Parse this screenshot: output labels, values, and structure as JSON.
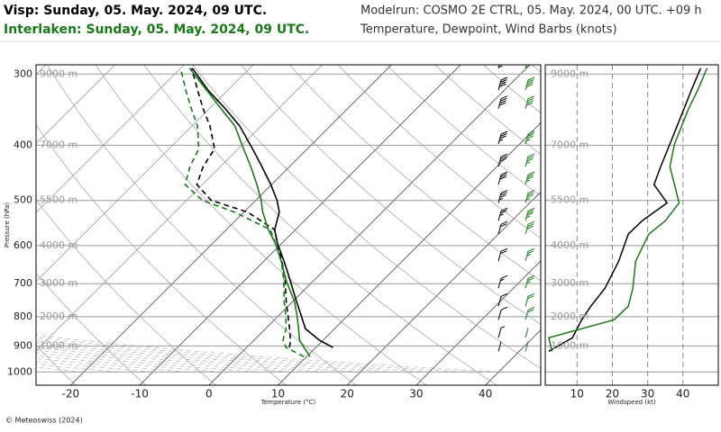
{
  "header": {
    "title_visp": "Visp: Sunday, 05. May. 2024, 09 UTC.",
    "title_interlaken": "Interlaken: Sunday, 05. May. 2024, 09 UTC.",
    "modelrun": "Modelrun: COSMO 2E CTRL, 05. May. 2024, 00 UTC. +09 h",
    "subtitle": "Temperature, Dewpoint, Wind Barbs (knots)",
    "title_visp_color": "#000000",
    "title_interlaken_color": "#1a7a1a"
  },
  "footer": "© Meteoswiss (2024)",
  "chart_data": [
    {
      "type": "skewt",
      "xlabel": "Temperature (°C)",
      "ylabel": "Pressure (hPa)",
      "xlim": [
        -25,
        48
      ],
      "ylim": [
        1055,
        289
      ],
      "xticks": [
        -20,
        -10,
        0,
        10,
        20,
        30,
        40
      ],
      "yticks": [
        300,
        400,
        500,
        600,
        700,
        800,
        900,
        1000
      ],
      "log_y": true,
      "grid": true,
      "height_labels": [
        "9000 m",
        "7000 m",
        "5500 m",
        "4000 m",
        "3000 m",
        "2000 m",
        "1000 m"
      ],
      "series": [
        {
          "color": "#000000",
          "dashed": false,
          "pressure": [
            906,
            880,
            840,
            795,
            753,
            688,
            639,
            595,
            563,
            524,
            500,
            469,
            436,
            406,
            370,
            345,
            320,
            293
          ],
          "values": [
            12.5,
            9.5,
            5.8,
            3.2,
            0.6,
            -3.6,
            -7.1,
            -10.6,
            -13.0,
            -14.9,
            -16.9,
            -20.1,
            -24.0,
            -27.9,
            -33.1,
            -37.7,
            -42.9,
            -48.3
          ]
        },
        {
          "color": "#000000",
          "dashed": true,
          "pressure": [
            906,
            880,
            840,
            795,
            753,
            688,
            639,
            595,
            563,
            524,
            500,
            469,
            436,
            406,
            370,
            345,
            320,
            293
          ],
          "values": [
            6.2,
            5.3,
            3.5,
            1.3,
            -0.9,
            -4.3,
            -7.4,
            -10.6,
            -13.0,
            -19.5,
            -26.4,
            -30.8,
            -32.5,
            -33.4,
            -37.4,
            -40.9,
            -44.4,
            -48.4
          ]
        },
        {
          "color": "#1a7a1a",
          "dashed": false,
          "pressure": [
            940,
            906,
            880,
            840,
            795,
            753,
            688,
            639,
            595,
            563,
            524,
            500,
            469,
            436,
            406,
            370,
            345,
            320,
            293
          ],
          "values": [
            10.5,
            8.3,
            6.6,
            4.8,
            2.6,
            0.3,
            -4.2,
            -7.5,
            -10.9,
            -13.9,
            -17.3,
            -19.2,
            -22.1,
            -25.6,
            -29.2,
            -33.8,
            -38.3,
            -43.1,
            -48.7
          ]
        },
        {
          "color": "#1a7a1a",
          "dashed": true,
          "pressure": [
            940,
            906,
            880,
            840,
            795,
            753,
            688,
            639,
            595,
            563,
            524,
            500,
            469,
            436,
            406,
            370,
            345,
            320,
            293
          ],
          "values": [
            9.6,
            5.7,
            4.2,
            3.0,
            1.0,
            -1.2,
            -4.5,
            -7.5,
            -10.9,
            -13.6,
            -21.4,
            -27.7,
            -32.5,
            -34.4,
            -35.7,
            -39.2,
            -42.6,
            -46.1,
            -50.0
          ]
        }
      ]
    },
    {
      "type": "wind",
      "xlabel": "Windspeed (kt)",
      "xlim": [
        1,
        50
      ],
      "xticks": [
        10,
        20,
        30,
        40
      ],
      "series": [
        {
          "color": "#000000",
          "pressure": [
            920,
            871,
            810,
            767,
            713,
            639,
            573,
            543,
            505,
            469,
            436,
            398,
            345,
            320,
            293
          ],
          "values": [
            2,
            8.7,
            11.3,
            13.9,
            17.9,
            21.8,
            24.5,
            28.4,
            35.5,
            31.8,
            33.7,
            36.3,
            40.3,
            42.4,
            45
          ]
        },
        {
          "color": "#1a7a1a",
          "pressure": [
            920,
            871,
            810,
            767,
            713,
            639,
            573,
            543,
            505,
            469,
            436,
            398,
            345,
            320,
            293
          ],
          "values": [
            2.9,
            2,
            20.5,
            24.5,
            25.8,
            26.6,
            30.3,
            35,
            38.9,
            37.6,
            36.3,
            37.6,
            41.6,
            44.2,
            46.8
          ]
        }
      ]
    }
  ]
}
